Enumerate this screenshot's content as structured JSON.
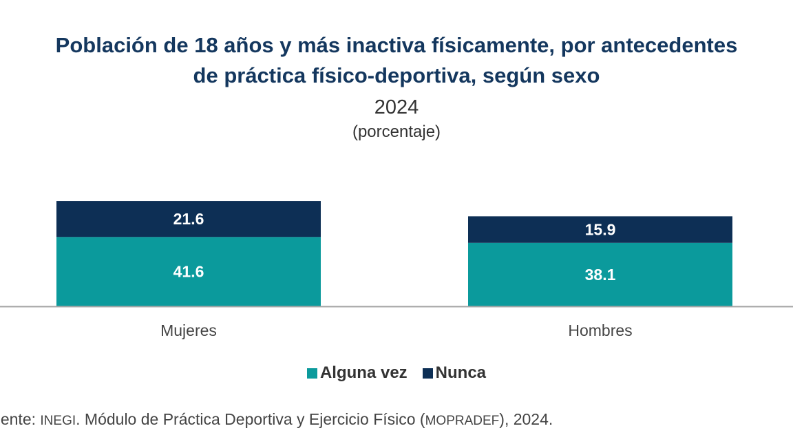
{
  "chart_data": {
    "type": "bar",
    "stacked": true,
    "title": "Población de 18 años y más inactiva físicamente, por antecedentes de práctica físico-deportiva, según sexo",
    "title_line1": "Población de 18 años y más inactiva físicamente, por antecedentes",
    "title_line2": "de práctica físico-deportiva, según sexo",
    "year": "2024",
    "unit": "(porcentaje)",
    "categories": [
      "Mujeres",
      "Hombres"
    ],
    "series": [
      {
        "name": "Alguna vez",
        "values": [
          41.6,
          38.1
        ],
        "color": "#0b9a9c"
      },
      {
        "name": "Nunca",
        "values": [
          21.6,
          15.9
        ],
        "color": "#0d2f55"
      }
    ],
    "data_labels": true,
    "grid": false,
    "y_axis_visible": false,
    "legend_position": "bottom",
    "source_prefix": "Fuente: ",
    "source_org": "INEGI",
    "source_mid": ". Módulo de Práctica Deportiva y Ejercicio Físico (",
    "source_abbr": "MOPRADEF",
    "source_end": "), 2024."
  }
}
